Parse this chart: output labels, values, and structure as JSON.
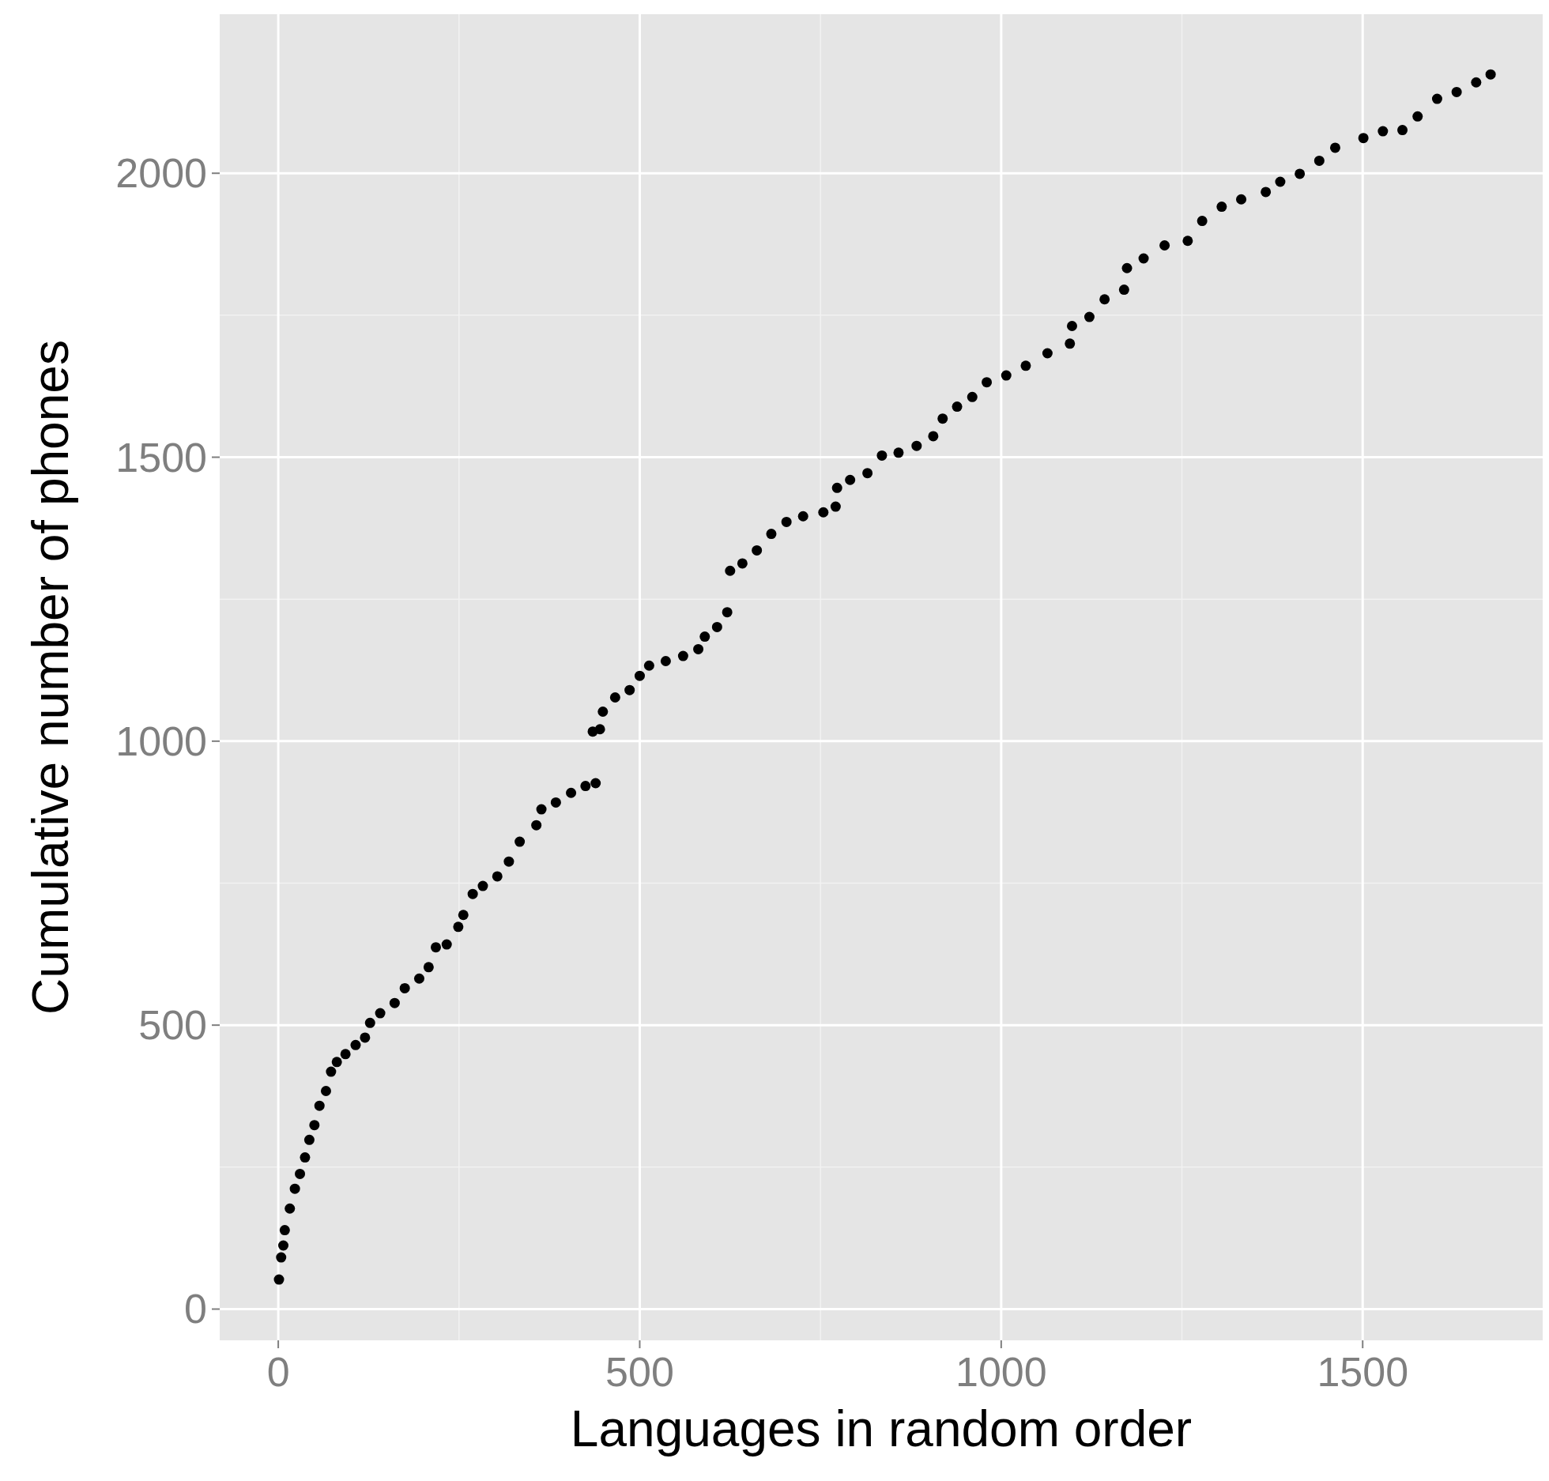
{
  "chart_data": {
    "type": "scatter",
    "xlabel": "Languages in random order",
    "ylabel": "Cumulative number of phones",
    "xlim": [
      -81,
      1749
    ],
    "ylim": [
      -55,
      2280
    ],
    "xticks": [
      0,
      500,
      1000,
      1500
    ],
    "yticks": [
      0,
      500,
      1000,
      1500,
      2000
    ],
    "grid": true,
    "marker": "circle",
    "series": [
      {
        "color": "#000000",
        "x": [
          1,
          4,
          7,
          9,
          16,
          23,
          30,
          37,
          43,
          50,
          57,
          66,
          73,
          81,
          93,
          107,
          120,
          127,
          141,
          161,
          175,
          195,
          208,
          218,
          233,
          249,
          256,
          269,
          283,
          303,
          319,
          334,
          357,
          364,
          384,
          405,
          425,
          439,
          435,
          445,
          449,
          466,
          486,
          500,
          513,
          536,
          560,
          581,
          590,
          607,
          621,
          625,
          642,
          662,
          682,
          703,
          726,
          754,
          771,
          773,
          791,
          815,
          835,
          858,
          883,
          906,
          919,
          939,
          960,
          980,
          1007,
          1034,
          1064,
          1095,
          1098,
          1122,
          1143,
          1170,
          1174,
          1197,
          1226,
          1258,
          1278,
          1305,
          1332,
          1366,
          1386,
          1413,
          1440,
          1462,
          1501,
          1528,
          1555,
          1576,
          1603,
          1630,
          1657,
          1677
        ],
        "values": [
          52,
          91,
          112,
          139,
          177,
          212,
          238,
          267,
          298,
          324,
          358,
          384,
          418,
          435,
          449,
          465,
          478,
          504,
          521,
          539,
          565,
          582,
          602,
          637,
          642,
          673,
          694,
          731,
          745,
          762,
          788,
          823,
          852,
          880,
          892,
          909,
          921,
          926,
          1017,
          1021,
          1052,
          1077,
          1090,
          1115,
          1133,
          1141,
          1150,
          1162,
          1184,
          1201,
          1227,
          1300,
          1313,
          1336,
          1365,
          1386,
          1396,
          1403,
          1413,
          1446,
          1460,
          1472,
          1503,
          1508,
          1520,
          1537,
          1568,
          1589,
          1606,
          1632,
          1644,
          1661,
          1683,
          1700,
          1731,
          1747,
          1778,
          1795,
          1833,
          1850,
          1873,
          1881,
          1916,
          1941,
          1954,
          1967,
          1985,
          1999,
          2022,
          2045,
          2062,
          2074,
          2076,
          2100,
          2131,
          2143,
          2160,
          2174
        ]
      }
    ]
  }
}
